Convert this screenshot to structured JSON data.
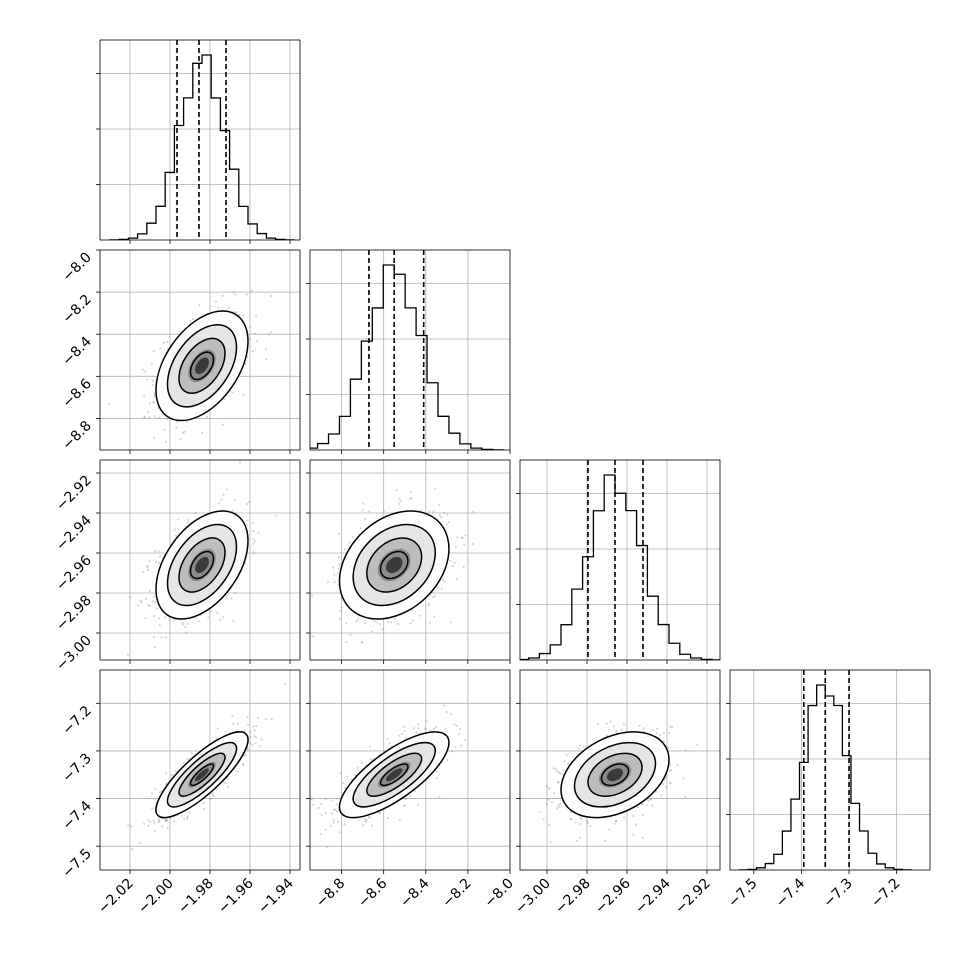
{
  "chart_data": {
    "type": "corner",
    "title": "",
    "parameters": [
      {
        "range": [
          -2.035,
          -1.935
        ],
        "ticks": [
          -2.02,
          -2.0,
          -1.98,
          -1.96,
          -1.94
        ],
        "tick_labels": [
          "−2.02",
          "−2.00",
          "−1.98",
          "−1.96",
          "−1.94"
        ],
        "mean": -1.984,
        "sd": 0.0115,
        "quantiles": [
          -1.9965,
          -1.9855,
          -1.972
        ]
      },
      {
        "range": [
          -8.95,
          -8.0
        ],
        "ticks": [
          -8.8,
          -8.6,
          -8.4,
          -8.2,
          -8.0
        ],
        "tick_labels": [
          "−8.8",
          "−8.6",
          "−8.4",
          "−8.2",
          "−8.0"
        ],
        "mean": -8.55,
        "sd": 0.13,
        "quantiles": [
          -8.67,
          -8.55,
          -8.41
        ]
      },
      {
        "range": [
          -3.0135,
          -2.9135
        ],
        "ticks": [
          -3.0,
          -2.98,
          -2.96,
          -2.94,
          -2.92
        ],
        "tick_labels": [
          "−3.00",
          "−2.98",
          "−2.96",
          "−2.94",
          "−2.92"
        ],
        "mean": -2.966,
        "sd": 0.0135,
        "quantiles": [
          -2.9795,
          -2.966,
          -2.952
        ]
      },
      {
        "range": [
          -7.55,
          -7.13
        ],
        "ticks": [
          -7.5,
          -7.4,
          -7.3,
          -7.2
        ],
        "tick_labels": [
          "−7.5",
          "−7.4",
          "−7.3",
          "−7.2"
        ],
        "mean": -7.35,
        "sd": 0.045,
        "quantiles": [
          -7.395,
          -7.35,
          -7.3
        ]
      }
    ],
    "correlations": [
      [
        1,
        0.45,
        0.45,
        0.82
      ],
      [
        0.45,
        1,
        0.3,
        0.75
      ],
      [
        0.45,
        0.3,
        1,
        0.35
      ],
      [
        0.82,
        0.75,
        0.35,
        1
      ]
    ],
    "contour_levels_sigma": [
      0.5,
      1.0,
      1.5,
      2.0
    ],
    "quantile_line_style": "dashed",
    "grid": true,
    "histogram_style": "step",
    "scatter_color": "#888888",
    "density_color": "#000000"
  }
}
